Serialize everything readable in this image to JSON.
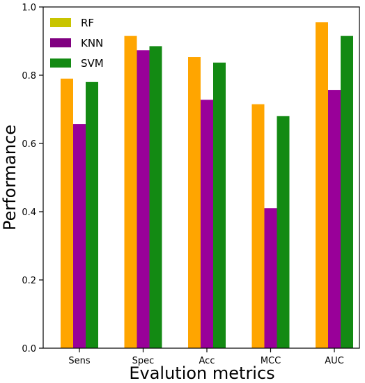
{
  "chart_data": {
    "type": "bar",
    "categories": [
      "Sens",
      "Spec",
      "Acc",
      "MCC",
      "AUC"
    ],
    "series": [
      {
        "name": "RF",
        "values": [
          0.79,
          0.915,
          0.853,
          0.715,
          0.955
        ],
        "bar_color": "#FFA500",
        "legend_color": "#C8C400"
      },
      {
        "name": "KNN",
        "values": [
          0.657,
          0.873,
          0.728,
          0.41,
          0.757
        ],
        "bar_color": "#990099",
        "legend_color": "#800080"
      },
      {
        "name": "SVM",
        "values": [
          0.78,
          0.885,
          0.837,
          0.68,
          0.915
        ],
        "bar_color": "#138A13",
        "legend_color": "#138A13"
      }
    ],
    "ylim": [
      0,
      1.0
    ],
    "yticks": [
      "0.0",
      "0.2",
      "0.4",
      "0.6",
      "0.8",
      "1.0"
    ],
    "xlabel": "Evalution metrics",
    "ylabel": "Performance",
    "title": "",
    "legend_position": "top-left",
    "grid": false
  }
}
